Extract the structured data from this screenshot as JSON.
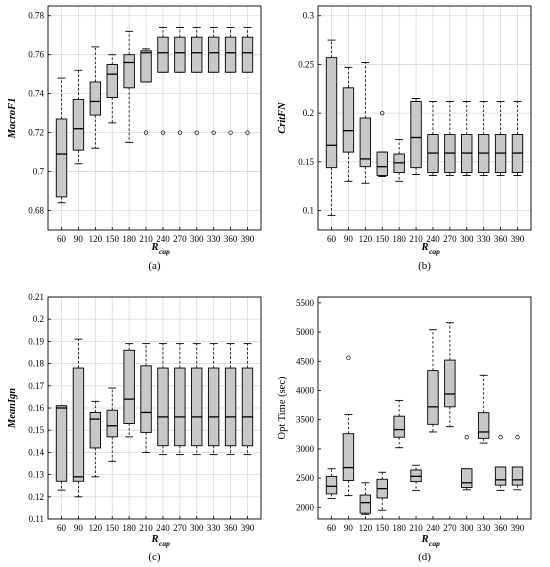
{
  "chart_data": [
    {
      "type": "box",
      "panel_label": "(a)",
      "ylabel": "MacroF1",
      "ylabel_italic": true,
      "xlabel_main": "R",
      "xlabel_sub": "cap",
      "ylim": [
        0.67,
        0.785
      ],
      "yticks": [
        "0.68",
        "0.7",
        "0.72",
        "0.74",
        "0.76",
        "0.78"
      ],
      "ytick_values": [
        0.68,
        0.7,
        0.72,
        0.74,
        0.76,
        0.78
      ],
      "grid": true,
      "categories": [
        "60",
        "90",
        "120",
        "150",
        "180",
        "210",
        "240",
        "270",
        "300",
        "330",
        "360",
        "390"
      ],
      "boxes": [
        {
          "min": 0.684,
          "q1": 0.687,
          "median": 0.709,
          "q3": 0.727,
          "max": 0.748,
          "outliers": []
        },
        {
          "min": 0.704,
          "q1": 0.711,
          "median": 0.722,
          "q3": 0.737,
          "max": 0.752,
          "outliers": []
        },
        {
          "min": 0.712,
          "q1": 0.729,
          "median": 0.736,
          "q3": 0.746,
          "max": 0.764,
          "outliers": []
        },
        {
          "min": 0.725,
          "q1": 0.738,
          "median": 0.75,
          "q3": 0.755,
          "max": 0.76,
          "outliers": []
        },
        {
          "min": 0.715,
          "q1": 0.743,
          "median": 0.756,
          "q3": 0.76,
          "max": 0.772,
          "outliers": []
        },
        {
          "min": 0.746,
          "q1": 0.746,
          "median": 0.761,
          "q3": 0.762,
          "max": 0.763,
          "outliers": [
            0.72
          ]
        },
        {
          "min": 0.751,
          "q1": 0.751,
          "median": 0.761,
          "q3": 0.769,
          "max": 0.774,
          "outliers": [
            0.72
          ]
        },
        {
          "min": 0.751,
          "q1": 0.751,
          "median": 0.761,
          "q3": 0.769,
          "max": 0.774,
          "outliers": [
            0.72
          ]
        },
        {
          "min": 0.751,
          "q1": 0.751,
          "median": 0.761,
          "q3": 0.769,
          "max": 0.774,
          "outliers": [
            0.72
          ]
        },
        {
          "min": 0.751,
          "q1": 0.751,
          "median": 0.761,
          "q3": 0.769,
          "max": 0.774,
          "outliers": [
            0.72
          ]
        },
        {
          "min": 0.751,
          "q1": 0.751,
          "median": 0.761,
          "q3": 0.769,
          "max": 0.774,
          "outliers": [
            0.72
          ]
        },
        {
          "min": 0.751,
          "q1": 0.751,
          "median": 0.761,
          "q3": 0.769,
          "max": 0.774,
          "outliers": [
            0.72
          ]
        }
      ]
    },
    {
      "type": "box",
      "panel_label": "(b)",
      "ylabel": "CritFN",
      "ylabel_italic": true,
      "xlabel_main": "R",
      "xlabel_sub": "cap",
      "ylim": [
        0.08,
        0.31
      ],
      "yticks": [
        "0.1",
        "0.15",
        "0.2",
        "0.25",
        "0.3"
      ],
      "ytick_values": [
        0.1,
        0.15,
        0.2,
        0.25,
        0.3
      ],
      "grid": true,
      "categories": [
        "60",
        "90",
        "120",
        "150",
        "180",
        "210",
        "240",
        "270",
        "300",
        "330",
        "360",
        "390"
      ],
      "boxes": [
        {
          "min": 0.095,
          "q1": 0.144,
          "median": 0.167,
          "q3": 0.257,
          "max": 0.275,
          "outliers": []
        },
        {
          "min": 0.13,
          "q1": 0.16,
          "median": 0.182,
          "q3": 0.226,
          "max": 0.247,
          "outliers": []
        },
        {
          "min": 0.128,
          "q1": 0.145,
          "median": 0.153,
          "q3": 0.195,
          "max": 0.252,
          "outliers": []
        },
        {
          "min": 0.135,
          "q1": 0.136,
          "median": 0.145,
          "q3": 0.16,
          "max": 0.16,
          "outliers": [
            0.2
          ]
        },
        {
          "min": 0.13,
          "q1": 0.139,
          "median": 0.149,
          "q3": 0.158,
          "max": 0.173,
          "outliers": []
        },
        {
          "min": 0.137,
          "q1": 0.144,
          "median": 0.175,
          "q3": 0.212,
          "max": 0.215,
          "outliers": []
        },
        {
          "min": 0.136,
          "q1": 0.139,
          "median": 0.159,
          "q3": 0.178,
          "max": 0.212,
          "outliers": []
        },
        {
          "min": 0.136,
          "q1": 0.139,
          "median": 0.159,
          "q3": 0.178,
          "max": 0.212,
          "outliers": []
        },
        {
          "min": 0.136,
          "q1": 0.139,
          "median": 0.159,
          "q3": 0.178,
          "max": 0.212,
          "outliers": []
        },
        {
          "min": 0.136,
          "q1": 0.139,
          "median": 0.159,
          "q3": 0.178,
          "max": 0.212,
          "outliers": []
        },
        {
          "min": 0.136,
          "q1": 0.139,
          "median": 0.159,
          "q3": 0.178,
          "max": 0.212,
          "outliers": []
        },
        {
          "min": 0.136,
          "q1": 0.139,
          "median": 0.159,
          "q3": 0.178,
          "max": 0.212,
          "outliers": []
        }
      ]
    },
    {
      "type": "box",
      "panel_label": "(c)",
      "ylabel": "MeanIgn",
      "ylabel_italic": true,
      "xlabel_main": "R",
      "xlabel_sub": "cap",
      "ylim": [
        0.11,
        0.21
      ],
      "yticks": [
        "0.11",
        "0.12",
        "0.13",
        "0.14",
        "0.15",
        "0.16",
        "0.17",
        "0.18",
        "0.19",
        "0.2",
        "0.21"
      ],
      "ytick_values": [
        0.11,
        0.12,
        0.13,
        0.14,
        0.15,
        0.16,
        0.17,
        0.18,
        0.19,
        0.2,
        0.21
      ],
      "grid": true,
      "categories": [
        "60",
        "90",
        "120",
        "150",
        "180",
        "210",
        "240",
        "270",
        "300",
        "330",
        "360",
        "390"
      ],
      "boxes": [
        {
          "min": 0.123,
          "q1": 0.127,
          "median": 0.16,
          "q3": 0.161,
          "max": 0.161,
          "outliers": []
        },
        {
          "min": 0.12,
          "q1": 0.127,
          "median": 0.129,
          "q3": 0.178,
          "max": 0.191,
          "outliers": []
        },
        {
          "min": 0.129,
          "q1": 0.142,
          "median": 0.155,
          "q3": 0.158,
          "max": 0.163,
          "outliers": []
        },
        {
          "min": 0.136,
          "q1": 0.147,
          "median": 0.152,
          "q3": 0.159,
          "max": 0.169,
          "outliers": []
        },
        {
          "min": 0.147,
          "q1": 0.153,
          "median": 0.164,
          "q3": 0.186,
          "max": 0.189,
          "outliers": []
        },
        {
          "min": 0.14,
          "q1": 0.149,
          "median": 0.158,
          "q3": 0.179,
          "max": 0.189,
          "outliers": []
        },
        {
          "min": 0.139,
          "q1": 0.143,
          "median": 0.156,
          "q3": 0.178,
          "max": 0.189,
          "outliers": []
        },
        {
          "min": 0.139,
          "q1": 0.143,
          "median": 0.156,
          "q3": 0.178,
          "max": 0.189,
          "outliers": []
        },
        {
          "min": 0.139,
          "q1": 0.143,
          "median": 0.156,
          "q3": 0.178,
          "max": 0.189,
          "outliers": []
        },
        {
          "min": 0.139,
          "q1": 0.143,
          "median": 0.156,
          "q3": 0.178,
          "max": 0.189,
          "outliers": []
        },
        {
          "min": 0.139,
          "q1": 0.143,
          "median": 0.156,
          "q3": 0.178,
          "max": 0.189,
          "outliers": []
        },
        {
          "min": 0.139,
          "q1": 0.143,
          "median": 0.156,
          "q3": 0.178,
          "max": 0.189,
          "outliers": []
        }
      ]
    },
    {
      "type": "box",
      "panel_label": "(d)",
      "ylabel": "Opt Time (sec)",
      "ylabel_italic": false,
      "xlabel_main": "R",
      "xlabel_sub": "cap",
      "ylim": [
        1800,
        5600
      ],
      "yticks": [
        "2000",
        "2500",
        "3000",
        "3500",
        "4000",
        "4500",
        "5000",
        "5500"
      ],
      "ytick_values": [
        2000,
        2500,
        3000,
        3500,
        4000,
        4500,
        5000,
        5500
      ],
      "grid": false,
      "categories": [
        "60",
        "90",
        "120",
        "150",
        "180",
        "210",
        "240",
        "270",
        "300",
        "330",
        "360",
        "390"
      ],
      "boxes": [
        {
          "min": 2150,
          "q1": 2230,
          "median": 2360,
          "q3": 2530,
          "max": 2660,
          "outliers": []
        },
        {
          "min": 2200,
          "q1": 2460,
          "median": 2680,
          "q3": 3260,
          "max": 3590,
          "outliers": [
            4560
          ]
        },
        {
          "min": 1880,
          "q1": 1900,
          "median": 2080,
          "q3": 2210,
          "max": 2420,
          "outliers": []
        },
        {
          "min": 1950,
          "q1": 2160,
          "median": 2320,
          "q3": 2480,
          "max": 2600,
          "outliers": []
        },
        {
          "min": 3020,
          "q1": 3200,
          "median": 3330,
          "q3": 3560,
          "max": 3830,
          "outliers": []
        },
        {
          "min": 2290,
          "q1": 2440,
          "median": 2530,
          "q3": 2640,
          "max": 2720,
          "outliers": []
        },
        {
          "min": 3290,
          "q1": 3420,
          "median": 3720,
          "q3": 4340,
          "max": 5040,
          "outliers": []
        },
        {
          "min": 3380,
          "q1": 3720,
          "median": 3940,
          "q3": 4520,
          "max": 5160,
          "outliers": []
        },
        {
          "min": 2300,
          "q1": 2340,
          "median": 2420,
          "q3": 2660,
          "max": 2660,
          "outliers": [
            3200
          ]
        },
        {
          "min": 3100,
          "q1": 3180,
          "median": 3290,
          "q3": 3620,
          "max": 4260,
          "outliers": []
        },
        {
          "min": 2290,
          "q1": 2380,
          "median": 2470,
          "q3": 2690,
          "max": 2690,
          "outliers": [
            3200
          ]
        },
        {
          "min": 2300,
          "q1": 2380,
          "median": 2470,
          "q3": 2690,
          "max": 2690,
          "outliers": [
            3200
          ]
        }
      ]
    }
  ]
}
